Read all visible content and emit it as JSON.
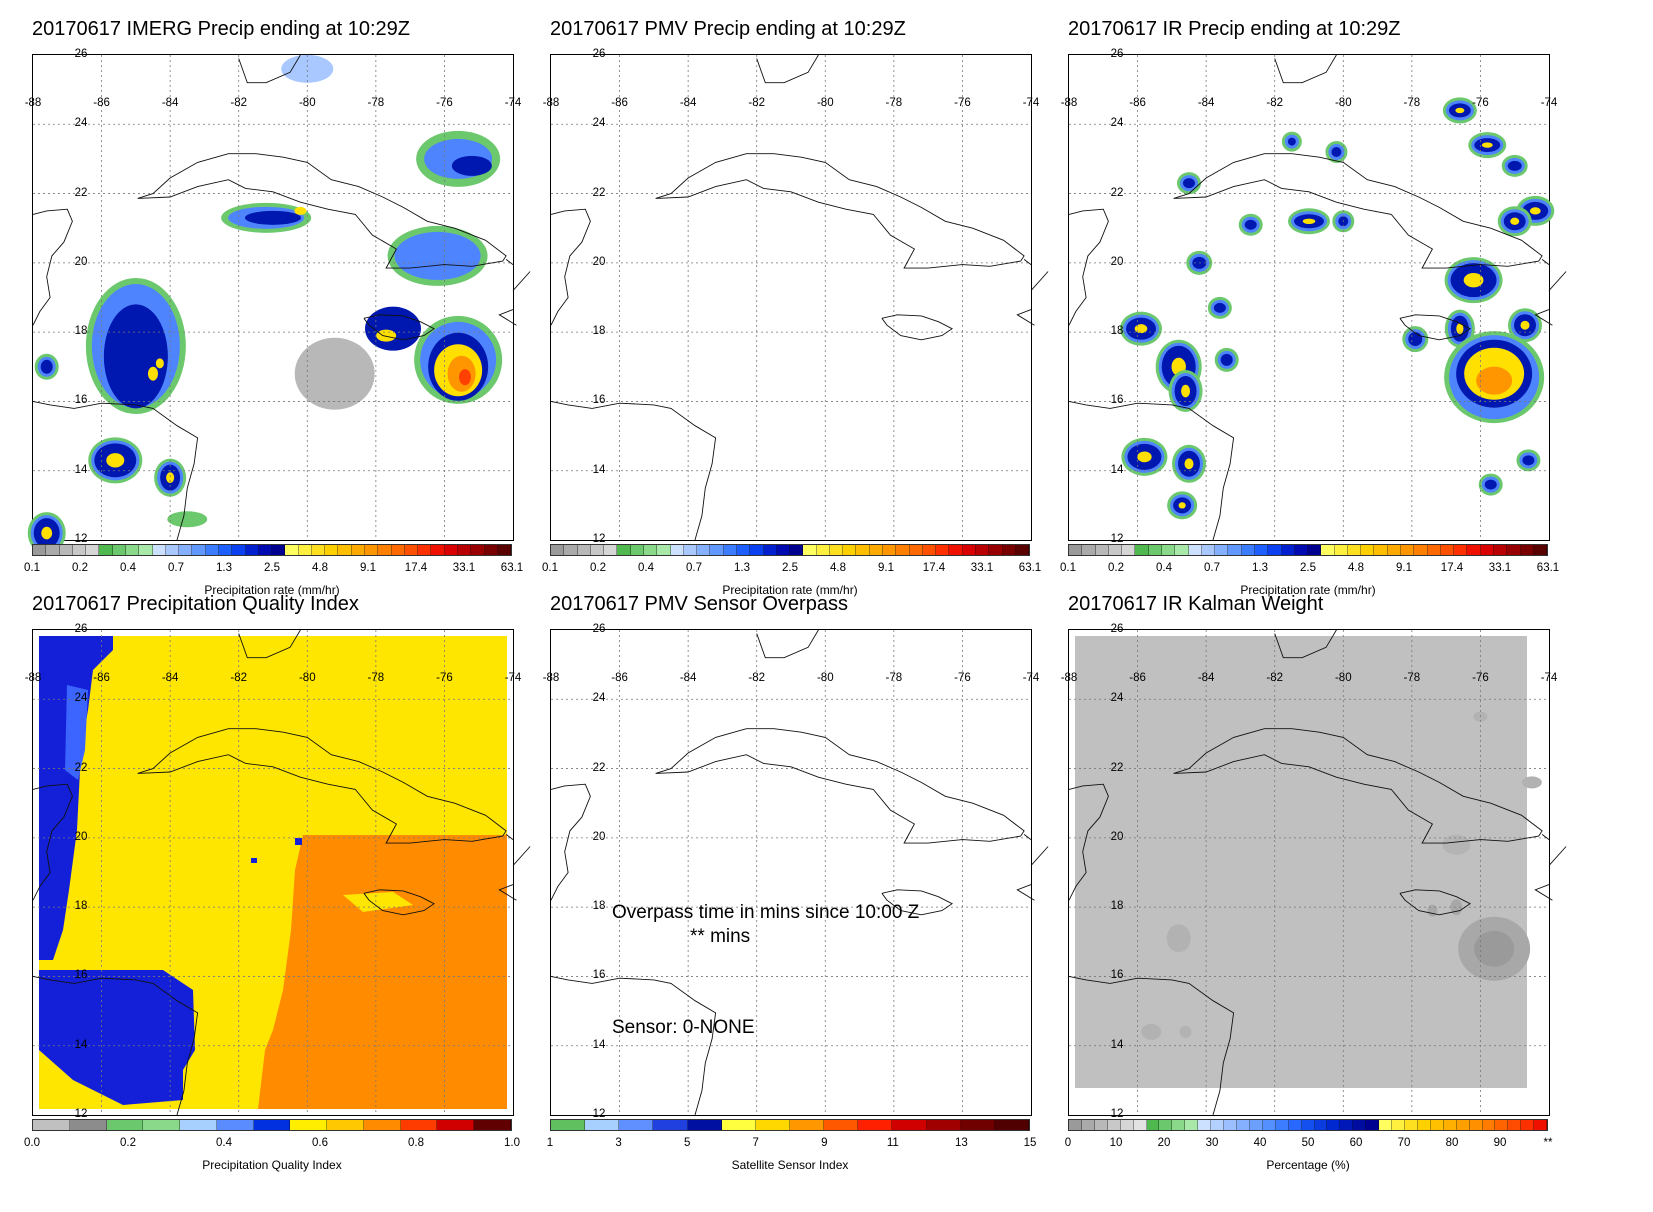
{
  "panels": {
    "p1": {
      "title": "20170617 IMERG Precip ending at 10:29Z",
      "colorbar_title": "Precipitation rate (mm/hr)"
    },
    "p2": {
      "title": "20170617 PMV Precip ending at 10:29Z",
      "colorbar_title": "Precipitation rate (mm/hr)"
    },
    "p3": {
      "title": "20170617 IR Precip ending at 10:29Z",
      "colorbar_title": "Precipitation rate (mm/hr)"
    },
    "p4": {
      "title": "20170617 Precipitation Quality Index",
      "colorbar_title": "Precipitation Quality Index"
    },
    "p5": {
      "title": "20170617 PMV Sensor Overpass",
      "colorbar_title": "Satellite Sensor Index",
      "overpass_line1": "Overpass time in mins since 10:00 Z",
      "overpass_line2": "** mins",
      "sensor_line": "Sensor:   0-NONE"
    },
    "p6": {
      "title": "20170617 IR Kalman Weight",
      "colorbar_title": "Percentage (%)"
    }
  },
  "map_axes": {
    "lon_labels": [
      "-88",
      "-86",
      "-84",
      "-82",
      "-80",
      "-78",
      "-76",
      "-74"
    ],
    "lat_labels": [
      "26",
      "24",
      "22",
      "20",
      "18",
      "16",
      "14",
      "12"
    ]
  },
  "colorbars": {
    "precip": {
      "ticks": [
        "0.1",
        "0.2",
        "0.4",
        "0.7",
        "1.3",
        "2.5",
        "4.8",
        "9.1",
        "17.4",
        "33.1",
        "63.1"
      ],
      "colors": [
        "#9a9a9a",
        "#aaaaaa",
        "#b8b8b8",
        "#c8c8c8",
        "#d6d6d6",
        "#4fb84f",
        "#6cc86c",
        "#8ad88a",
        "#a8e8a8",
        "#cce0ff",
        "#a8c8ff",
        "#84b0ff",
        "#6098ff",
        "#3c7cff",
        "#1e60ff",
        "#0a40f0",
        "#0020d0",
        "#000ab0",
        "#000090",
        "#ffff60",
        "#fff040",
        "#ffe020",
        "#ffd000",
        "#ffbe00",
        "#ffaa00",
        "#ff9600",
        "#ff8000",
        "#ff6a00",
        "#ff5000",
        "#ff3000",
        "#f01000",
        "#d80000",
        "#b80000",
        "#980000",
        "#780000",
        "#5a0000"
      ]
    },
    "quality": {
      "ticks": [
        "0.0",
        "0.2",
        "0.4",
        "0.6",
        "0.8",
        "1.0"
      ],
      "colors": [
        "#c0c0c0",
        "#8c8c8c",
        "#6cc86c",
        "#8ad88a",
        "#a8d0ff",
        "#5a8cff",
        "#0030e0",
        "#ffee00",
        "#ffc800",
        "#ff8c00",
        "#ff3c00",
        "#d00000",
        "#600000"
      ]
    },
    "sensor": {
      "ticks": [
        "1",
        "3",
        "5",
        "7",
        "9",
        "11",
        "13",
        "15"
      ],
      "colors": [
        "#60c060",
        "#a8d0ff",
        "#6090ff",
        "#2040e0",
        "#0010a0",
        "#ffff40",
        "#ffd800",
        "#ff9800",
        "#ff5800",
        "#ff2000",
        "#d00000",
        "#a00000",
        "#700000",
        "#500000"
      ]
    },
    "kalman": {
      "ticks": [
        "0",
        "10",
        "20",
        "30",
        "40",
        "50",
        "60",
        "70",
        "80",
        "90",
        "**"
      ],
      "colors": [
        "#9a9a9a",
        "#aaaaaa",
        "#b8b8b8",
        "#c8c8c8",
        "#d6d6d6",
        "#e2e2e2",
        "#4fb84f",
        "#6cc86c",
        "#8ad88a",
        "#a8e8a8",
        "#cce0ff",
        "#b4d0ff",
        "#9cc0ff",
        "#84b0ff",
        "#6ca0ff",
        "#5490ff",
        "#3c7cff",
        "#2868ff",
        "#1450f0",
        "#0a3ce0",
        "#0028d0",
        "#0018b8",
        "#000ca0",
        "#000090",
        "#ffff60",
        "#fff040",
        "#ffe020",
        "#ffd000",
        "#ffc000",
        "#ffb000",
        "#ffa000",
        "#ff9000",
        "#ff7c00",
        "#ff6400",
        "#ff4c00",
        "#ff3000",
        "#f01000"
      ]
    }
  }
}
